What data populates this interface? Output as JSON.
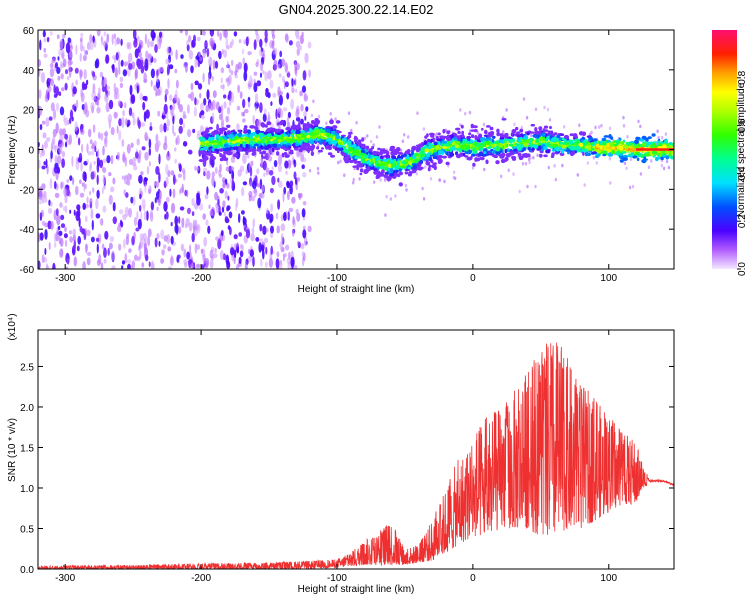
{
  "title": "GN04.2025.300.22.14.E02",
  "chart_data": [
    {
      "type": "heatmap",
      "xlabel": "Height of straight line (km)",
      "ylabel": "Frequency (Hz)",
      "xlim": [
        -320,
        148
      ],
      "ylim": [
        -60,
        60
      ],
      "x_ticks": [
        -300,
        -200,
        -100,
        0,
        100
      ],
      "y_ticks": [
        -60,
        -40,
        -20,
        0,
        20,
        40,
        60
      ],
      "colorbar": {
        "label": "Normalized spectral amplitude",
        "ticks": [
          "0.0",
          "0.2",
          "0.4",
          "0.6",
          "0.8"
        ],
        "range": [
          0,
          1
        ]
      },
      "ridge": {
        "x": [
          -200,
          -180,
          -160,
          -140,
          -125,
          -115,
          -100,
          -90,
          -80,
          -70,
          -60,
          -50,
          -42,
          -35,
          -25,
          -15,
          -5,
          0,
          10,
          20,
          30,
          40,
          50,
          60,
          70,
          80,
          90,
          100,
          110,
          120,
          130,
          148
        ],
        "frequency": [
          3,
          4,
          5,
          5,
          6,
          8,
          5,
          0,
          -4,
          -7,
          -8,
          -7,
          -5,
          -1,
          1,
          2,
          2,
          1,
          2,
          2,
          3,
          3,
          4,
          3,
          2,
          2,
          1,
          1,
          1,
          0,
          0,
          0
        ]
      },
      "noise_region_x": [
        -320,
        -120
      ]
    },
    {
      "type": "line",
      "xlabel": "Height of straight line (km)",
      "ylabel": "SNR (10 * v/v)",
      "scale_label": "(x10⁴)",
      "xlim": [
        -320,
        148
      ],
      "ylim": [
        0,
        2.95
      ],
      "x_ticks": [
        -300,
        -200,
        -100,
        0,
        100
      ],
      "y_ticks": [
        "0.0",
        "0.5",
        "1.0",
        "1.5",
        "2.0",
        "2.5"
      ],
      "color": "#ee3030",
      "envelope": {
        "x": [
          -320,
          -250,
          -200,
          -150,
          -120,
          -100,
          -90,
          -80,
          -70,
          -60,
          -50,
          -40,
          -30,
          -20,
          -10,
          0,
          10,
          20,
          30,
          40,
          50,
          60,
          70,
          80,
          90,
          100,
          110,
          120,
          125,
          130,
          140,
          148
        ],
        "max": [
          0.04,
          0.05,
          0.07,
          0.08,
          0.1,
          0.12,
          0.2,
          0.35,
          0.45,
          0.6,
          0.25,
          0.3,
          0.6,
          1.0,
          1.4,
          1.6,
          1.9,
          2.0,
          2.2,
          2.5,
          2.7,
          2.9,
          2.6,
          2.3,
          2.1,
          1.9,
          1.7,
          1.6,
          1.3,
          1.1,
          1.1,
          1.05
        ],
        "min": [
          0.0,
          0.0,
          0.0,
          0.0,
          0.0,
          0.02,
          0.03,
          0.05,
          0.05,
          0.05,
          0.05,
          0.08,
          0.1,
          0.2,
          0.3,
          0.4,
          0.4,
          0.5,
          0.5,
          0.5,
          0.4,
          0.4,
          0.5,
          0.5,
          0.6,
          0.7,
          0.8,
          0.8,
          1.0,
          1.05,
          1.05,
          1.0
        ]
      }
    }
  ]
}
